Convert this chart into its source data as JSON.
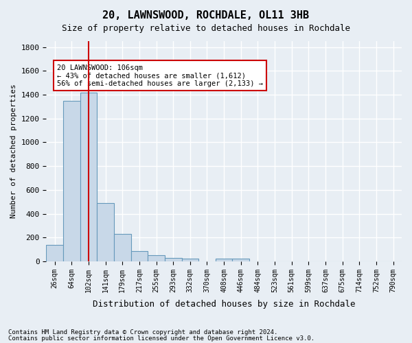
{
  "title": "20, LAWNSWOOD, ROCHDALE, OL11 3HB",
  "subtitle": "Size of property relative to detached houses in Rochdale",
  "xlabel": "Distribution of detached houses by size in Rochdale",
  "ylabel": "Number of detached properties",
  "footer1": "Contains HM Land Registry data © Crown copyright and database right 2024.",
  "footer2": "Contains public sector information licensed under the Open Government Licence v3.0.",
  "bin_labels": [
    "26sqm",
    "64sqm",
    "102sqm",
    "141sqm",
    "179sqm",
    "217sqm",
    "255sqm",
    "293sqm",
    "332sqm",
    "370sqm",
    "408sqm",
    "446sqm",
    "484sqm",
    "523sqm",
    "561sqm",
    "599sqm",
    "637sqm",
    "675sqm",
    "714sqm",
    "752sqm",
    "790sqm"
  ],
  "bar_values": [
    140,
    1350,
    1415,
    490,
    228,
    85,
    50,
    28,
    22,
    0,
    20,
    20,
    0,
    0,
    0,
    0,
    0,
    0,
    0,
    0,
    0
  ],
  "bar_color": "#c8d8e8",
  "bar_edge_color": "#6699bb",
  "red_line_x": 2.0,
  "annotation_text": "20 LAWNSWOOD: 106sqm\n← 43% of detached houses are smaller (1,612)\n56% of semi-detached houses are larger (2,133) →",
  "annotation_box_color": "#ffffff",
  "annotation_box_edge": "#cc0000",
  "ylim": [
    0,
    1850
  ],
  "yticks": [
    0,
    200,
    400,
    600,
    800,
    1000,
    1200,
    1400,
    1600,
    1800
  ],
  "bg_color": "#e8eef4",
  "plot_bg_color": "#e8eef4",
  "grid_color": "#ffffff",
  "red_line_color": "#cc0000"
}
